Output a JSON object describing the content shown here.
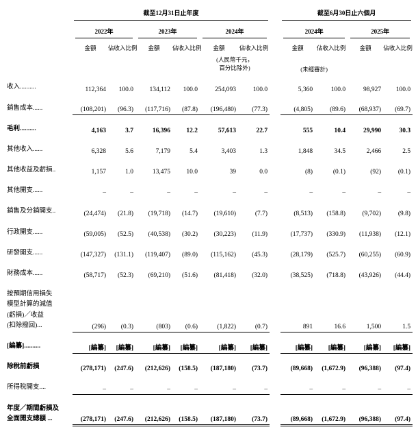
{
  "table": {
    "header": {
      "annual_period": "截至12月31日止年度",
      "interim_period": "截至6月30日止六個月",
      "annual_years": [
        "2022年",
        "2023年",
        "2024年"
      ],
      "interim_years": [
        "2024年",
        "2025年"
      ],
      "amount_label": "金額",
      "pct_label": "佔收入比例",
      "currency_note": "(人民幣千元，\n百分比除外)",
      "unaudited_note": "(未經審計)"
    },
    "rows": [
      {
        "label": "收入..........",
        "bold": false,
        "border": "none",
        "values": [
          "112,364",
          "100.0",
          "134,112",
          "100.0",
          "254,093",
          "100.0",
          "5,360",
          "100.0",
          "98,927",
          "100.0"
        ]
      },
      {
        "label": "銷售成本......",
        "bold": false,
        "border": "single",
        "values": [
          "(108,201)",
          "(96.3)",
          "(117,716)",
          "(87.8)",
          "(196,480)",
          "(77.3)",
          "(4,805)",
          "(89.6)",
          "(68,937)",
          "(69.7)"
        ]
      },
      {
        "label": "毛利..........",
        "bold": true,
        "border": "none",
        "values": [
          "4,163",
          "3.7",
          "16,396",
          "12.2",
          "57,613",
          "22.7",
          "555",
          "10.4",
          "29,990",
          "30.3"
        ]
      },
      {
        "label": "其他收入......",
        "bold": false,
        "border": "none",
        "values": [
          "6,328",
          "5.6",
          "7,179",
          "5.4",
          "3,403",
          "1.3",
          "1,848",
          "34.5",
          "2,466",
          "2.5"
        ]
      },
      {
        "label": "其他收益及虧損..",
        "bold": false,
        "border": "none",
        "values": [
          "1,157",
          "1.0",
          "13,475",
          "10.0",
          "39",
          "0.0",
          "(8)",
          "(0.1)",
          "(92)",
          "(0.1)"
        ]
      },
      {
        "label": "其他開支......",
        "bold": false,
        "border": "none",
        "values": [
          "–",
          "–",
          "–",
          "–",
          "–",
          "–",
          "–",
          "–",
          "–",
          "–"
        ]
      },
      {
        "label": "銷售及分銷開支..",
        "bold": false,
        "border": "none",
        "values": [
          "(24,474)",
          "(21.8)",
          "(19,718)",
          "(14.7)",
          "(19,610)",
          "(7.7)",
          "(8,513)",
          "(158.8)",
          "(9,702)",
          "(9.8)"
        ]
      },
      {
        "label": "行政開支......",
        "bold": false,
        "border": "none",
        "values": [
          "(59,005)",
          "(52.5)",
          "(40,538)",
          "(30.2)",
          "(30,223)",
          "(11.9)",
          "(17,737)",
          "(330.9)",
          "(11,938)",
          "(12.1)"
        ]
      },
      {
        "label": "研發開支......",
        "bold": false,
        "border": "none",
        "values": [
          "(147,327)",
          "(131.1)",
          "(119,407)",
          "(89.0)",
          "(115,162)",
          "(45.3)",
          "(28,179)",
          "(525.7)",
          "(60,255)",
          "(60.9)"
        ]
      },
      {
        "label": "財務成本......",
        "bold": false,
        "border": "none",
        "values": [
          "(58,717)",
          "(52.3)",
          "(69,210)",
          "(51.6)",
          "(81,418)",
          "(32.0)",
          "(38,525)",
          "(718.8)",
          "(43,926)",
          "(44.4)"
        ]
      },
      {
        "label": "按預期信用損失\n模型計算的減值\n(虧損)／收益\n(扣除撥回)...",
        "bold": false,
        "border": "single",
        "values": [
          "(296)",
          "(0.3)",
          "(803)",
          "(0.6)",
          "(1,822)",
          "(0.7)",
          "891",
          "16.6",
          "1,500",
          "1.5"
        ]
      },
      {
        "label": "[編纂]..........",
        "bold": true,
        "border": "single",
        "values": [
          "[編纂]",
          "[編纂]",
          "[編纂]",
          "[編纂]",
          "[編纂]",
          "[編纂]",
          "[編纂]",
          "[編纂]",
          "[編纂]",
          "[編纂]"
        ]
      },
      {
        "label": "除稅前虧損",
        "bold": true,
        "border": "none",
        "values": [
          "(278,171)",
          "(247.6)",
          "(212,626)",
          "(158.5)",
          "(187,180)",
          "(73.7)",
          "(89,668)",
          "(1,672.9)",
          "(96,388)",
          "(97.4)"
        ]
      },
      {
        "label": "所得稅開支....",
        "bold": false,
        "border": "single",
        "values": [
          "–",
          "–",
          "–",
          "–",
          "–",
          "–",
          "–",
          "–",
          "–",
          "–"
        ]
      },
      {
        "label": "年度／期間虧損及\n全面開支總額 ...",
        "bold": true,
        "border": "double",
        "values": [
          "(278,171)",
          "(247.6)",
          "(212,626)",
          "(158.5)",
          "(187,180)",
          "(73.7)",
          "(89,668)",
          "(1,672.9)",
          "(96,388)",
          "(97.4)"
        ]
      }
    ]
  }
}
